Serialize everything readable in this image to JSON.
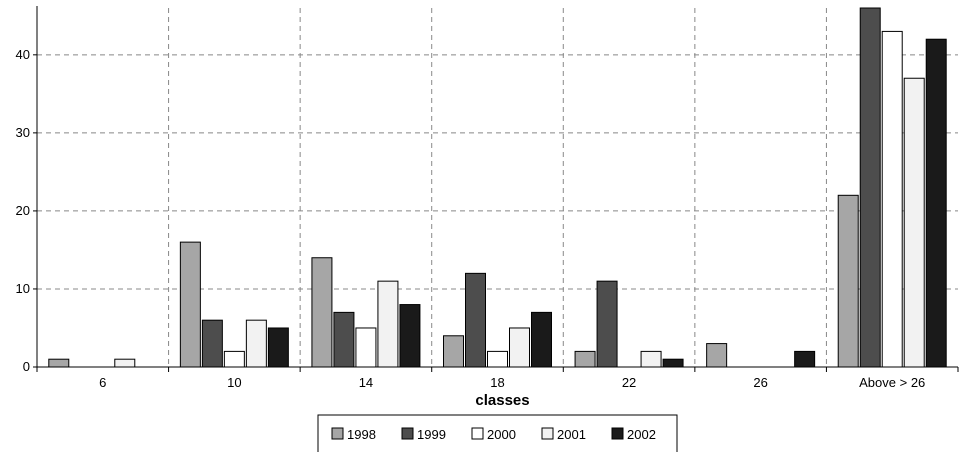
{
  "chart_data": {
    "type": "bar",
    "xlabel": "classes",
    "ylabel": "",
    "ylim": [
      0,
      46
    ],
    "yticks": [
      0,
      10,
      20,
      30,
      40
    ],
    "grid": true,
    "legend_position": "bottom",
    "categories": [
      "6",
      "10",
      "14",
      "18",
      "22",
      "26",
      "Above > 26"
    ],
    "series": [
      {
        "name": "1998",
        "color": "#a6a6a6",
        "values": [
          1,
          16,
          14,
          4,
          2,
          3,
          22
        ]
      },
      {
        "name": "1999",
        "color": "#4d4d4d",
        "values": [
          0,
          6,
          7,
          12,
          11,
          0,
          46
        ]
      },
      {
        "name": "2000",
        "color": "#ffffff",
        "values": [
          0,
          2,
          5,
          2,
          0,
          0,
          43
        ]
      },
      {
        "name": "2001",
        "color": "#f2f2f2",
        "values": [
          1,
          6,
          11,
          5,
          2,
          0,
          37
        ]
      },
      {
        "name": "2002",
        "color": "#1a1a1a",
        "values": [
          0,
          5,
          8,
          7,
          1,
          2,
          42
        ]
      }
    ]
  }
}
